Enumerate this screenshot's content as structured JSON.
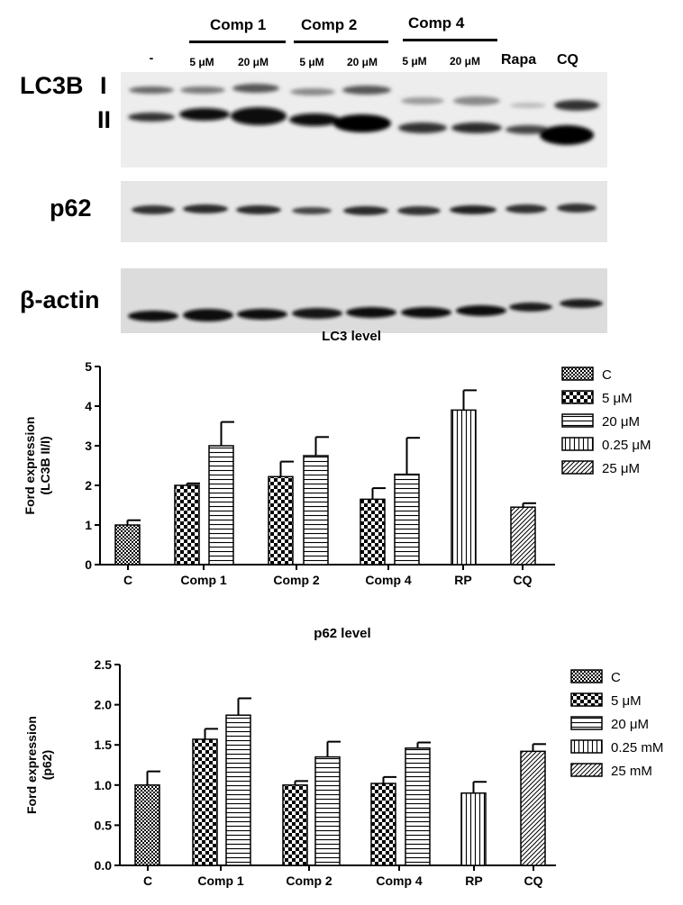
{
  "blot": {
    "groups": [
      {
        "label": "Comp 1"
      },
      {
        "label": "Comp 2"
      },
      {
        "label": "Comp 4"
      }
    ],
    "lanes": [
      "-",
      "5 μM",
      "20 μM",
      "5 μM",
      "20 μM",
      "5 μM",
      "20 μM",
      "Rapa",
      "CQ"
    ],
    "row_labels": {
      "lc3b": "LC3B",
      "band_i": "I",
      "band_ii": "II",
      "p62": "p62",
      "actin": "β-actin"
    }
  },
  "legend1": [
    "C",
    "5 μM",
    "20 μM",
    "0.25 μM",
    "25 μM"
  ],
  "legend2": [
    "C",
    "5 μM",
    "20 μM",
    "0.25 mM",
    "25 mM"
  ],
  "chart_data": [
    {
      "type": "bar",
      "title": "LC3 level",
      "ylabel": "Ford expression (LC3B II/I)",
      "ylim": [
        0,
        5
      ],
      "yticks": [
        "0",
        "1",
        "2",
        "3",
        "4",
        "5"
      ],
      "categories": [
        "C",
        "Comp 1",
        "Comp 2",
        "Comp 4",
        "RP",
        "CQ"
      ],
      "bars": [
        {
          "category": "C",
          "pattern": "C",
          "value": 1.0,
          "error": 0.12
        },
        {
          "category": "Comp 1",
          "pattern": "5 μM",
          "value": 2.0,
          "error": 0.05
        },
        {
          "category": "Comp 1",
          "pattern": "20 μM",
          "value": 3.0,
          "error": 0.6
        },
        {
          "category": "Comp 2",
          "pattern": "5 μM",
          "value": 2.22,
          "error": 0.38
        },
        {
          "category": "Comp 2",
          "pattern": "20 μM",
          "value": 2.75,
          "error": 0.47
        },
        {
          "category": "Comp 4",
          "pattern": "5 μM",
          "value": 1.65,
          "error": 0.28
        },
        {
          "category": "Comp 4",
          "pattern": "20 μM",
          "value": 2.28,
          "error": 0.92
        },
        {
          "category": "RP",
          "pattern": "0.25 μM",
          "value": 3.9,
          "error": 0.5
        },
        {
          "category": "CQ",
          "pattern": "25 μM",
          "value": 1.45,
          "error": 0.1
        }
      ]
    },
    {
      "type": "bar",
      "title": "p62 level",
      "ylabel": "Ford expression (p62)",
      "ylim": [
        0,
        2.5
      ],
      "yticks": [
        "0.0",
        "0.5",
        "1.0",
        "1.5",
        "2.0",
        "2.5"
      ],
      "categories": [
        "C",
        "Comp 1",
        "Comp 2",
        "Comp 4",
        "RP",
        "CQ"
      ],
      "bars": [
        {
          "category": "C",
          "pattern": "C",
          "value": 1.0,
          "error": 0.17
        },
        {
          "category": "Comp 1",
          "pattern": "5 μM",
          "value": 1.57,
          "error": 0.13
        },
        {
          "category": "Comp 1",
          "pattern": "20 μM",
          "value": 1.87,
          "error": 0.21
        },
        {
          "category": "Comp 2",
          "pattern": "5 μM",
          "value": 1.0,
          "error": 0.05
        },
        {
          "category": "Comp 2",
          "pattern": "20 μM",
          "value": 1.35,
          "error": 0.19
        },
        {
          "category": "Comp 4",
          "pattern": "5 μM",
          "value": 1.02,
          "error": 0.08
        },
        {
          "category": "Comp 4",
          "pattern": "20 μM",
          "value": 1.46,
          "error": 0.07
        },
        {
          "category": "RP",
          "pattern": "0.25 mM",
          "value": 0.9,
          "error": 0.14
        },
        {
          "category": "CQ",
          "pattern": "25 mM",
          "value": 1.42,
          "error": 0.09
        }
      ]
    }
  ]
}
